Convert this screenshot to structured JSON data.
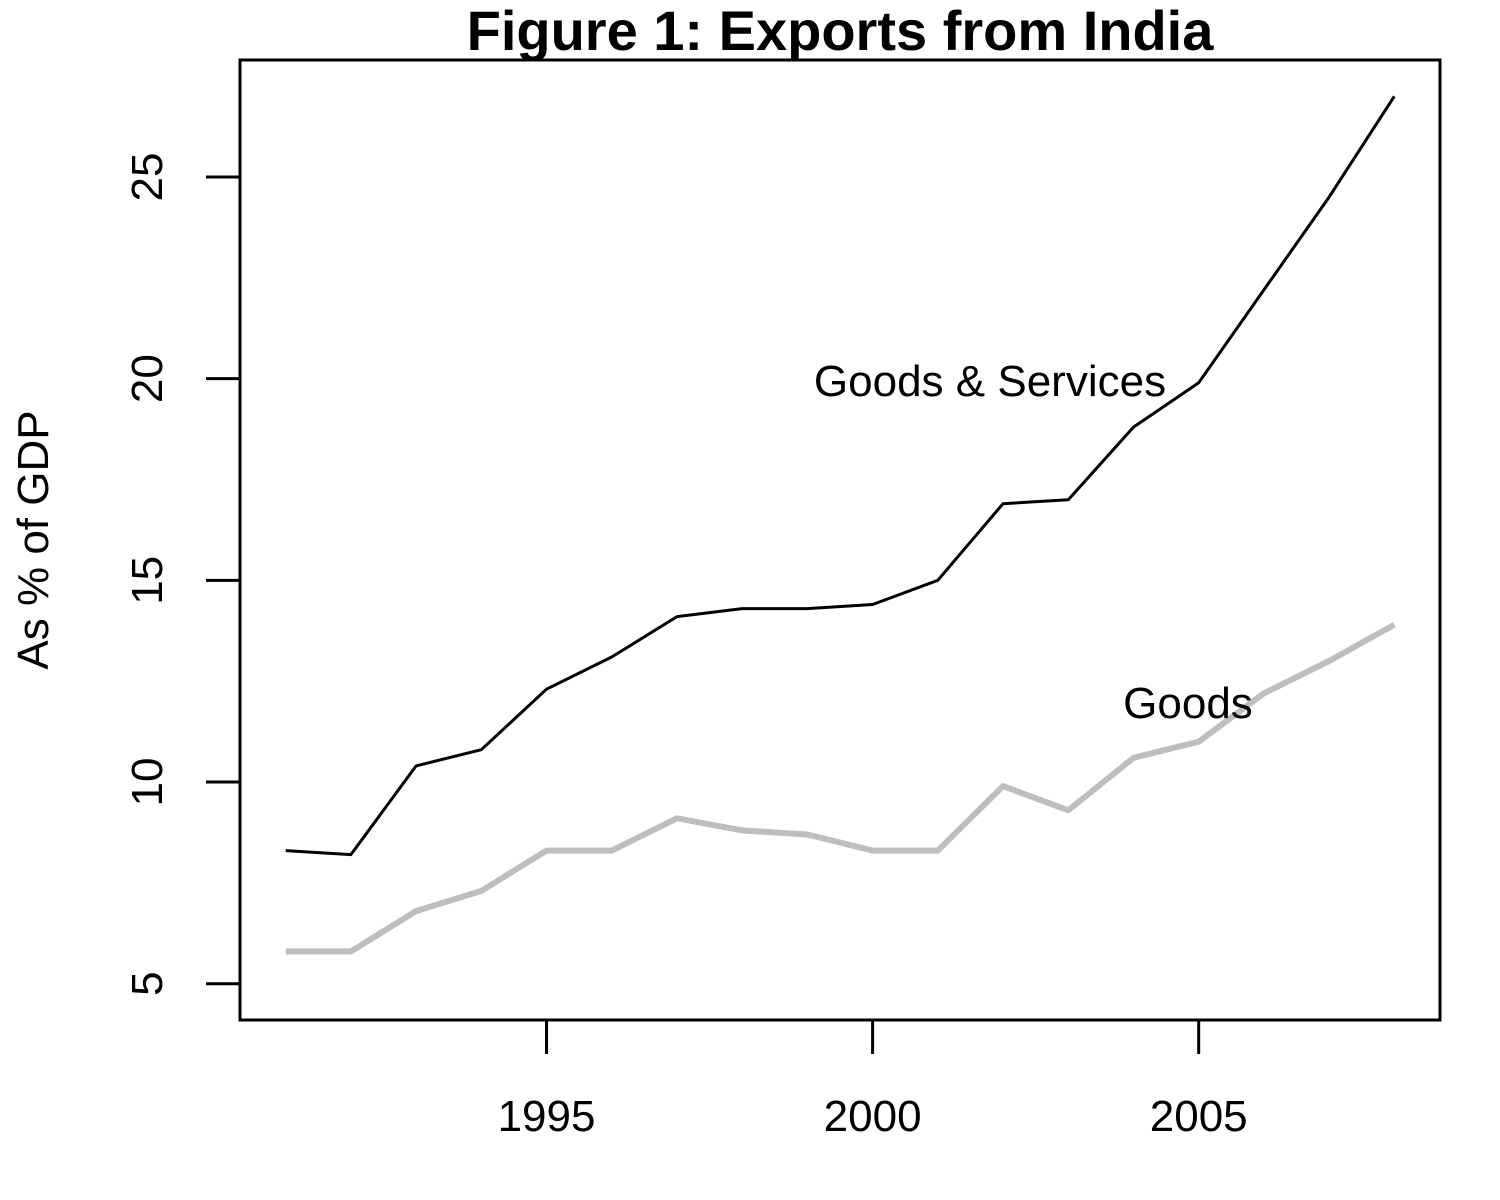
{
  "chart_data": {
    "type": "line",
    "title": "Figure 1: Exports from India",
    "xlabel": "",
    "ylabel": "As % of GDP",
    "xlim": [
      1990.3,
      2008.7
    ],
    "ylim": [
      4.1,
      27.9
    ],
    "x_ticks": [
      1995,
      2000,
      2005
    ],
    "y_ticks": [
      5,
      10,
      15,
      20,
      25
    ],
    "grid": false,
    "legend": "none",
    "x": [
      1991,
      1992,
      1993,
      1994,
      1995,
      1996,
      1997,
      1998,
      1999,
      2000,
      2001,
      2002,
      2003,
      2004,
      2005,
      2006,
      2007,
      2008
    ],
    "series": [
      {
        "name": "Goods & Services",
        "color": "#000000",
        "values": [
          8.3,
          8.2,
          10.4,
          10.8,
          12.3,
          13.1,
          14.1,
          14.3,
          14.3,
          14.4,
          15.0,
          16.9,
          17.0,
          18.8,
          19.9,
          22.2,
          24.5,
          27.0
        ]
      },
      {
        "name": "Goods",
        "color": "#bebebe",
        "values": [
          5.8,
          5.8,
          6.8,
          7.3,
          8.3,
          8.3,
          9.1,
          8.8,
          8.7,
          8.3,
          8.3,
          9.9,
          9.3,
          10.6,
          11.0,
          12.2,
          13.0,
          13.9
        ]
      }
    ]
  }
}
